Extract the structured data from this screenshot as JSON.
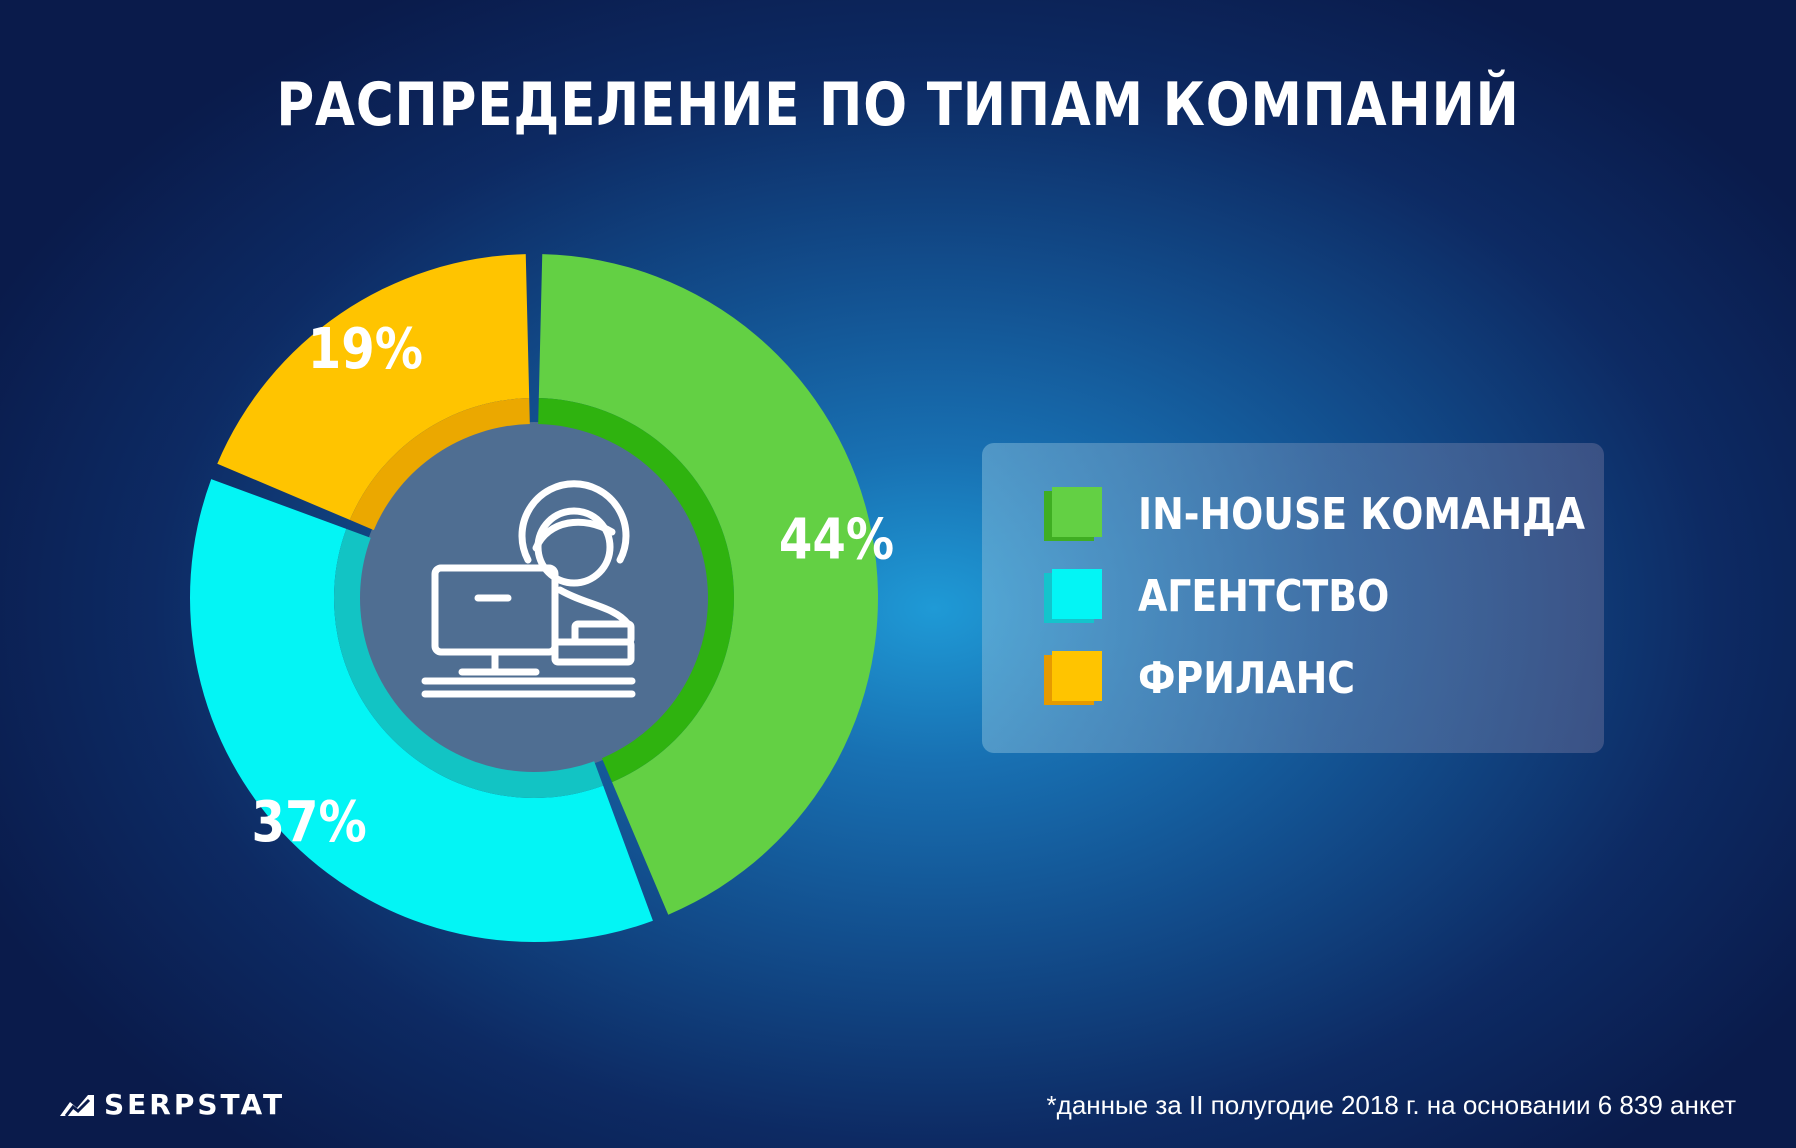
{
  "title": "РАСПРЕДЕЛЕНИЕ ПО ТИПАМ КОМПАНИЙ",
  "chart_data": {
    "type": "pie",
    "variant": "donut",
    "title": "РАСПРЕДЕЛЕНИЕ ПО ТИПАМ КОМПАНИЙ",
    "categories": [
      "IN-HOUSE КОМАНДА",
      "АГЕНТСТВО",
      "ФРИЛАНС"
    ],
    "values": [
      44,
      37,
      19
    ],
    "labels": [
      "44%",
      "37%",
      "19%"
    ],
    "colors": [
      "#63d044",
      "#03f5f5",
      "#ffc400"
    ],
    "inner_colors": [
      "#2fb30f",
      "#12c4c4",
      "#eba800"
    ],
    "legend_position": "right",
    "center_icon": "person-at-computer-icon"
  },
  "legend": {
    "items": [
      {
        "label": "IN-HOUSE КОМАНДА",
        "color": "#63d044",
        "shade": "#3fae22"
      },
      {
        "label": "АГЕНТСТВО",
        "color": "#03f5f5",
        "shade": "#14c4cc"
      },
      {
        "label": "ФРИЛАНС",
        "color": "#ffc400",
        "shade": "#e69a00"
      }
    ]
  },
  "footer": {
    "logo_text": "SERPSTAT",
    "logo_icon": "serpstat-logo-icon",
    "note": "*данные за II полугодие 2018 г. на основании 6 839 анкет"
  }
}
